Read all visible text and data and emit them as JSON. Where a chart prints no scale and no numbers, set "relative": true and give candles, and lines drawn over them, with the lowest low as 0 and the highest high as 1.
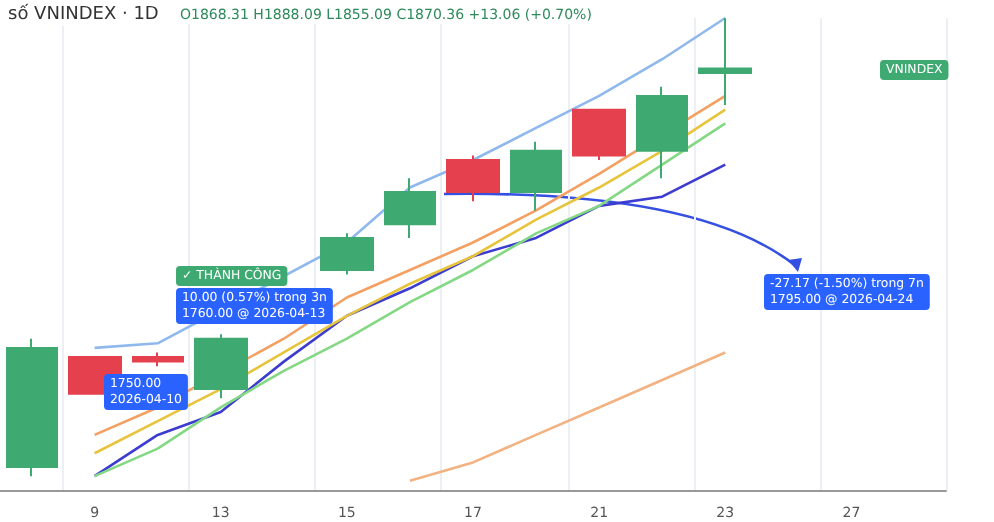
{
  "chart_data": {
    "type": "candlestick",
    "title": "số VNINDEX · 1D",
    "subtitle": "O1868.31 H1888.09 L1855.09 C1870.36 +13.06 (+0.70%)",
    "relative": true,
    "grid": true,
    "tick_labels": "x",
    "marker": "none",
    "line_style": "solid",
    "categories": [
      null,
      "9",
      null,
      "13",
      null,
      "15",
      null,
      "17",
      null,
      "21",
      null,
      "23",
      null,
      "27",
      null
    ],
    "ohlc": [
      [
        0.02,
        0.3,
        0,
        0.28
      ],
      [
        0.26,
        0.26,
        0.18,
        0.18
      ],
      [
        0.26,
        0.27,
        0.24,
        0.25
      ],
      [
        0.19,
        0.31,
        0.17,
        0.3
      ],
      null,
      [
        0.45,
        0.53,
        0.44,
        0.52
      ],
      [
        0.55,
        0.65,
        0.52,
        0.62
      ],
      [
        0.69,
        0.7,
        0.6,
        0.62
      ],
      [
        0.62,
        0.73,
        0.58,
        0.71
      ],
      [
        0.8,
        0.8,
        0.69,
        0.7
      ],
      [
        0.71,
        0.85,
        0.65,
        0.83
      ],
      [
        0.88,
        1,
        0.81,
        0.89
      ],
      null,
      null,
      null
    ],
    "colors": [
      "#3fa972",
      "#e5404e",
      "#e5404e",
      "#3fa972",
      null,
      "#3fa972",
      "#3fa972",
      "#e5404e",
      "#3fa972",
      "#e5404e",
      "#3fa972",
      "#3fa972",
      null,
      null,
      null
    ],
    "series": [
      {
        "type": "line",
        "color": "#8fb8ec",
        "values": [
          null,
          0.28,
          0.29,
          null,
          null,
          0.51,
          0.63,
          0.69,
          0.76,
          0.83,
          0.91,
          1.0,
          null,
          null,
          null
        ]
      },
      {
        "type": "line",
        "color": "#3c3cd0",
        "values": [
          null,
          0,
          0.09,
          0.14,
          0.25,
          0.35,
          0.41,
          0.48,
          0.52,
          0.59,
          0.61,
          0.68,
          null,
          null,
          null
        ]
      },
      {
        "type": "line",
        "color": "#f4a062",
        "values": [
          null,
          0.09,
          0.15,
          null,
          0.3,
          0.39,
          0.45,
          0.51,
          0.58,
          0.66,
          null,
          0.83,
          null,
          null,
          null
        ]
      },
      {
        "type": "line",
        "color": "#e6c43c",
        "values": [
          null,
          0.05,
          0.12,
          0.19,
          0.27,
          0.35,
          0.42,
          0.48,
          0.56,
          0.63,
          0.71,
          0.8,
          null,
          null,
          null
        ]
      },
      {
        "type": "line",
        "color": "#84d884",
        "values": [
          null,
          0,
          0.06,
          0.15,
          0.23,
          0.3,
          0.38,
          0.45,
          0.53,
          0.59,
          0.68,
          0.77,
          null,
          null,
          null
        ]
      },
      {
        "type": "line",
        "color": "#f2b282",
        "values": [
          null,
          null,
          null,
          null,
          null,
          null,
          -0.01,
          0.03,
          0.09,
          0.15,
          0.21,
          0.27,
          null,
          null,
          null
        ]
      }
    ],
    "annotations": [
      "✓ THÀNH CÔNG",
      "1750.00\n2026-04-10",
      "10.00 (0.57%) trong 3n\n1760.00 @ 2026-04-13",
      "-27.17 (-1.50%) trong 7n\n1795.00 @ 2026-04-24",
      "VNINDEX"
    ]
  }
}
